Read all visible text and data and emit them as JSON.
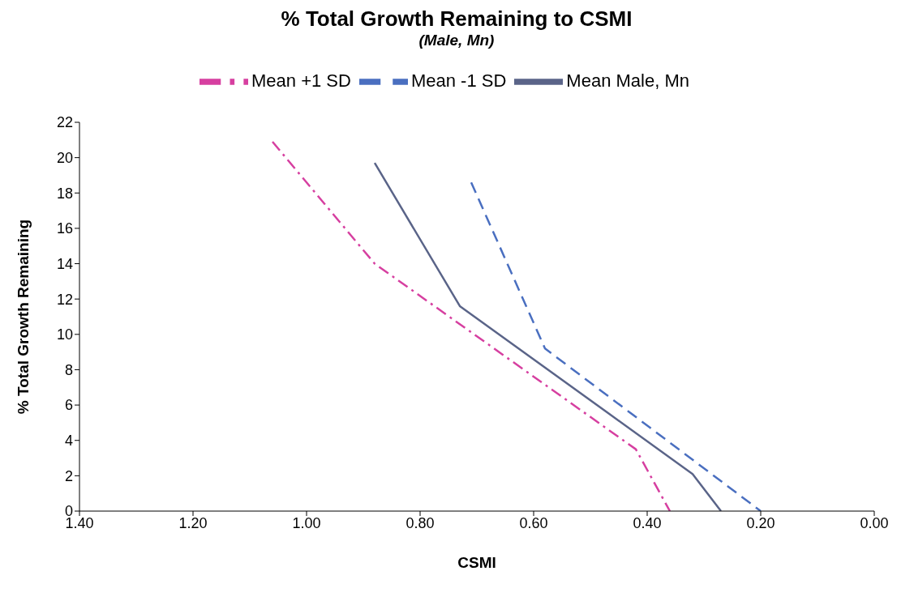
{
  "chart_data": {
    "type": "line",
    "title": "% Total Growth Remaining to CSMI",
    "subtitle": "(Male, Mn)",
    "xlabel": "CSMI",
    "ylabel": "% Total Growth Remaining",
    "series": [
      {
        "name": "Mean Male, Mn",
        "color": "#5a6488",
        "line_style": "solid",
        "x": [
          0.88,
          0.73,
          0.32,
          0.27
        ],
        "values": [
          19.7,
          11.6,
          2.1,
          0
        ]
      },
      {
        "name": "Mean +1 SD",
        "color": "#d63fa0",
        "line_style": "dashdot",
        "x": [
          1.06,
          0.88,
          0.42,
          0.36
        ],
        "values": [
          20.9,
          14.0,
          3.5,
          0
        ]
      },
      {
        "name": "Mean -1 SD",
        "color": "#4a6fc0",
        "line_style": "dashed",
        "x": [
          0.71,
          0.58,
          0.2
        ],
        "values": [
          18.6,
          9.2,
          0
        ]
      }
    ],
    "xlim": [
      1.4,
      0
    ],
    "xticks": [
      {
        "value": 1.4,
        "label": "1.40"
      },
      {
        "value": 1.2,
        "label": "1.20"
      },
      {
        "value": 1,
        "label": "1.00"
      },
      {
        "value": 0.8,
        "label": "0.80"
      },
      {
        "value": 0.6,
        "label": "0.60"
      },
      {
        "value": 0.4,
        "label": "0.40"
      },
      {
        "value": 0.2,
        "label": "0.20"
      },
      {
        "value": 0,
        "label": "0.00"
      }
    ],
    "ylim": [
      0,
      22
    ],
    "yticks": [
      0,
      2,
      4,
      6,
      8,
      10,
      12,
      14,
      16,
      18,
      20,
      22
    ],
    "legend": "top",
    "marker": "none",
    "grid": false
  }
}
